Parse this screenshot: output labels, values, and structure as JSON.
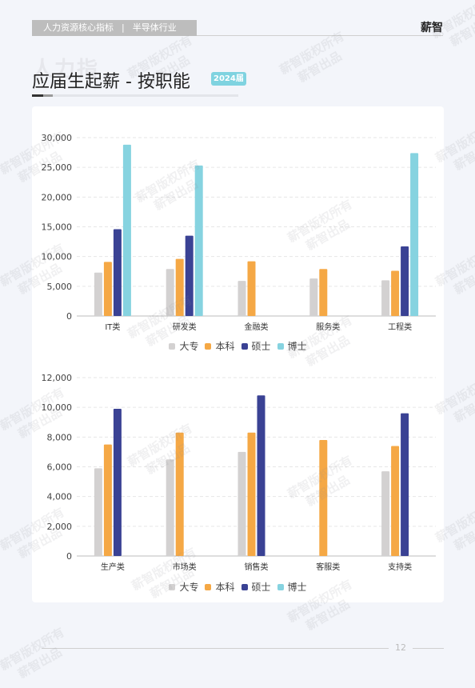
{
  "header": {
    "category": "人力资源核心指标",
    "separator": "|",
    "industry": "半导体行业",
    "brand": "薪智"
  },
  "page": {
    "ghost_text": "人力指",
    "title": "应届生起薪 - 按职能",
    "year_badge": "2024届",
    "page_number": "12"
  },
  "watermark": {
    "line1": "薪智版权所有",
    "line2": "薪智出品"
  },
  "colors": {
    "大专": "#d3d1d1",
    "本科": "#f5a845",
    "硕士": "#3a4294",
    "博士": "#86d3e0"
  },
  "chart_data": [
    {
      "type": "bar",
      "categories": [
        "IT类",
        "研发类",
        "金融类",
        "服务类",
        "工程类"
      ],
      "series": [
        {
          "name": "大专",
          "values": [
            7300,
            7900,
            5900,
            6300,
            6000
          ]
        },
        {
          "name": "本科",
          "values": [
            9100,
            9600,
            9200,
            7900,
            7600
          ]
        },
        {
          "name": "硕士",
          "values": [
            14600,
            13500,
            null,
            null,
            11700
          ]
        },
        {
          "name": "博士",
          "values": [
            28800,
            25300,
            null,
            null,
            27400
          ]
        }
      ],
      "ylim": [
        0,
        30000
      ],
      "yticks": [
        0,
        5000,
        10000,
        15000,
        20000,
        25000,
        30000
      ],
      "ytick_labels": [
        "0",
        "5,000",
        "10,000",
        "15,000",
        "20,000",
        "25,000",
        "30,000"
      ],
      "grid": true,
      "legend": "bottom-center"
    },
    {
      "type": "bar",
      "categories": [
        "生产类",
        "市场类",
        "销售类",
        "客服类",
        "支持类"
      ],
      "series": [
        {
          "name": "大专",
          "values": [
            5900,
            6500,
            7000,
            null,
            5700
          ]
        },
        {
          "name": "本科",
          "values": [
            7500,
            8300,
            8300,
            7800,
            7400
          ]
        },
        {
          "name": "硕士",
          "values": [
            9900,
            null,
            10800,
            null,
            9600
          ]
        },
        {
          "name": "博士",
          "values": [
            null,
            null,
            null,
            null,
            null
          ]
        }
      ],
      "ylim": [
        0,
        12000
      ],
      "yticks": [
        0,
        2000,
        4000,
        6000,
        8000,
        10000,
        12000
      ],
      "ytick_labels": [
        "0",
        "2,000",
        "4,000",
        "6,000",
        "8,000",
        "10,000",
        "12,000"
      ],
      "grid": true,
      "legend": "bottom-center"
    }
  ]
}
